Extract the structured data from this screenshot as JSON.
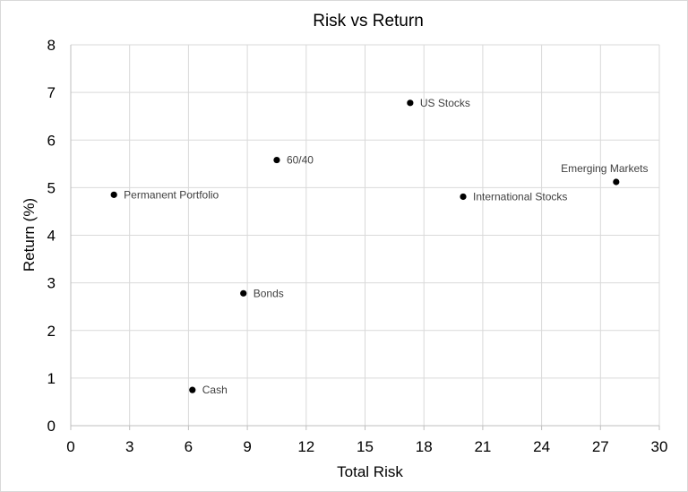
{
  "chart_data": {
    "type": "scatter",
    "title": "Risk vs Return",
    "xlabel": "Total Risk",
    "ylabel": "Return (%)",
    "xlim": [
      0,
      30
    ],
    "ylim": [
      0,
      8
    ],
    "xticks": [
      0,
      3,
      6,
      9,
      12,
      15,
      18,
      21,
      24,
      27,
      30
    ],
    "yticks": [
      0,
      1,
      2,
      3,
      4,
      5,
      6,
      7,
      8
    ],
    "grid": true,
    "legend": "none",
    "marker_color": "#000000",
    "points": [
      {
        "label": "Permanent Portfolio",
        "x": 2.2,
        "y": 4.85
      },
      {
        "label": "Cash",
        "x": 6.2,
        "y": 0.75
      },
      {
        "label": "Bonds",
        "x": 8.8,
        "y": 2.78
      },
      {
        "label": "60/40",
        "x": 10.5,
        "y": 5.58
      },
      {
        "label": "US Stocks",
        "x": 17.3,
        "y": 6.78
      },
      {
        "label": "International Stocks",
        "x": 20.0,
        "y": 4.81
      },
      {
        "label": "Emerging Markets",
        "x": 27.8,
        "y": 5.12
      }
    ]
  }
}
